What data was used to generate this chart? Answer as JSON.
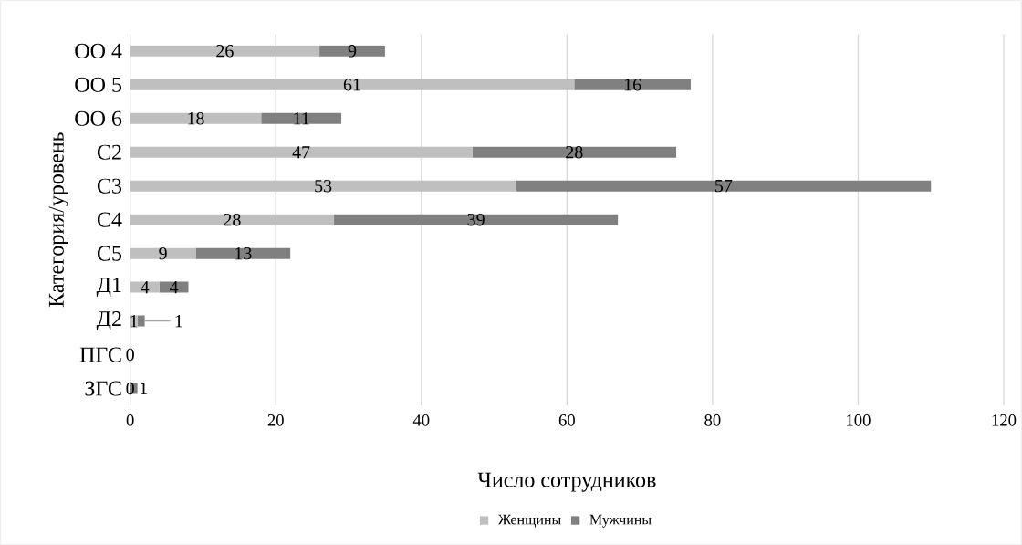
{
  "chart_data": {
    "type": "bar",
    "orientation": "horizontal",
    "stacked": true,
    "categories": [
      "ОО 4",
      "ОО 5",
      "ОО 6",
      "С2",
      "С3",
      "С4",
      "С5",
      "Д1",
      "Д2",
      "ПГС",
      "ЗГС"
    ],
    "series": [
      {
        "name": "Женщины",
        "color": "#bfbfbf",
        "values": [
          26,
          61,
          18,
          47,
          53,
          28,
          9,
          4,
          1,
          0,
          0
        ],
        "value_labels": [
          "26",
          "61",
          "18",
          "47",
          "53",
          "28",
          "9",
          "4",
          "1",
          "0",
          "0"
        ]
      },
      {
        "name": "Мужчины",
        "color": "#808080",
        "values": [
          9,
          16,
          11,
          28,
          57,
          39,
          13,
          4,
          1,
          0,
          1
        ],
        "value_labels": [
          "9",
          "16",
          "11",
          "28",
          "57",
          "39",
          "13",
          "4",
          "1",
          null,
          "1"
        ]
      }
    ],
    "xlabel": "Число сотрудников",
    "ylabel": "Категория/уровень",
    "xlim": [
      0,
      120
    ],
    "xticks": [
      0,
      20,
      40,
      60,
      80,
      100,
      120
    ],
    "grid": "x",
    "legend": "bottom"
  }
}
